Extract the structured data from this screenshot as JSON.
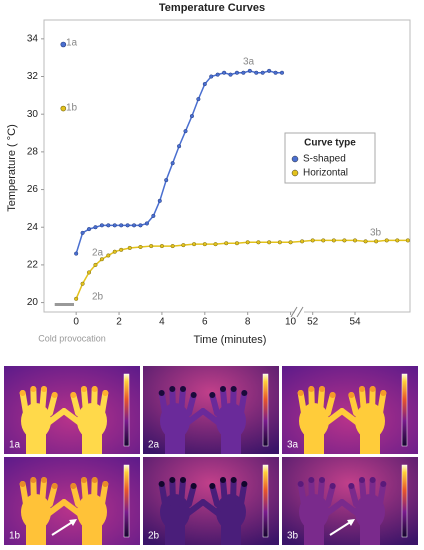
{
  "chart_data": {
    "type": "line",
    "title": "Temperature Curves",
    "x_label": "Time (minutes)",
    "y_label": "Temperature ( °C)",
    "xlim": [
      -1.5,
      56.6
    ],
    "xbreak": [
      10.3,
      51.4
    ],
    "ylim": [
      19.5,
      35
    ],
    "xticks": [
      0,
      2,
      4,
      6,
      8,
      10,
      52,
      54
    ],
    "yticks": [
      20,
      22,
      24,
      26,
      28,
      30,
      32,
      34
    ],
    "legend": {
      "title": "Curve type",
      "position": "upper right"
    },
    "cold_provocation": {
      "label": "Cold provocation",
      "x": [
        -1.0,
        -0.1
      ],
      "y": 19.9
    },
    "baseline_x": -0.6,
    "series": [
      {
        "name": "S-shaped",
        "color": "#4a6fd0",
        "baseline": 33.7,
        "x": [
          0,
          0.3,
          0.6,
          0.9,
          1.2,
          1.5,
          1.8,
          2.1,
          2.4,
          2.7,
          3.0,
          3.3,
          3.6,
          3.9,
          4.2,
          4.5,
          4.8,
          5.1,
          5.4,
          5.7,
          6.0,
          6.3,
          6.6,
          6.9,
          7.2,
          7.5,
          7.8,
          8.1,
          8.4,
          8.7,
          9.0,
          9.3,
          9.6
        ],
        "values": [
          22.6,
          23.7,
          23.9,
          24.0,
          24.1,
          24.1,
          24.1,
          24.1,
          24.1,
          24.1,
          24.1,
          24.2,
          24.6,
          25.4,
          26.5,
          27.4,
          28.3,
          29.1,
          29.9,
          30.8,
          31.6,
          32.0,
          32.1,
          32.2,
          32.1,
          32.2,
          32.2,
          32.3,
          32.2,
          32.2,
          32.3,
          32.2,
          32.2
        ]
      },
      {
        "name": "Horizontal",
        "color": "#e3c21c",
        "baseline": 30.3,
        "x": [
          0,
          0.3,
          0.6,
          0.9,
          1.2,
          1.5,
          1.8,
          2.1,
          2.5,
          3,
          3.5,
          4,
          4.5,
          5,
          5.5,
          6,
          6.5,
          7,
          7.5,
          8,
          8.5,
          9,
          9.5,
          10,
          51.5,
          52,
          52.5,
          53,
          53.5,
          54,
          54.5,
          55,
          55.5,
          56,
          56.5
        ],
        "values": [
          20.2,
          21.0,
          21.6,
          22.0,
          22.3,
          22.5,
          22.7,
          22.8,
          22.9,
          22.95,
          23.0,
          23.0,
          23.0,
          23.05,
          23.1,
          23.1,
          23.1,
          23.15,
          23.15,
          23.2,
          23.2,
          23.2,
          23.2,
          23.2,
          23.25,
          23.3,
          23.3,
          23.3,
          23.3,
          23.3,
          23.25,
          23.25,
          23.3,
          23.3,
          23.3
        ]
      }
    ],
    "annotations": [
      "1a",
      "1b",
      "2a",
      "2b",
      "3a",
      "3b"
    ]
  },
  "panels": [
    "1a",
    "2a",
    "3a",
    "1b",
    "2b",
    "3b"
  ]
}
